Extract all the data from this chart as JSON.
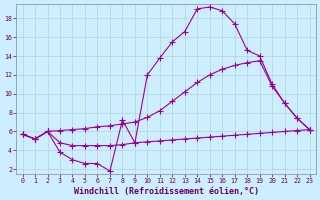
{
  "xlabel": "Windchill (Refroidissement éolien,°C)",
  "background_color": "#cceeff",
  "line_color": "#990099",
  "grid_color": "#aacccc",
  "xlim": [
    -0.5,
    23.5
  ],
  "ylim": [
    1.5,
    19.5
  ],
  "xticks": [
    0,
    1,
    2,
    3,
    4,
    5,
    6,
    7,
    8,
    9,
    10,
    11,
    12,
    13,
    14,
    15,
    16,
    17,
    18,
    19,
    20,
    21,
    22,
    23
  ],
  "yticks": [
    2,
    4,
    6,
    8,
    10,
    12,
    14,
    16,
    18
  ],
  "line1_x": [
    0,
    1,
    2,
    3,
    4,
    5,
    6,
    7,
    8,
    9,
    10,
    11,
    12,
    13,
    14,
    15,
    16,
    17,
    18,
    19,
    20,
    21,
    22,
    23
  ],
  "line1_y": [
    5.7,
    5.2,
    6.0,
    3.8,
    3.0,
    2.6,
    2.6,
    1.8,
    7.2,
    4.8,
    12.0,
    13.8,
    15.5,
    16.6,
    19.0,
    19.2,
    18.8,
    17.4,
    14.6,
    14.0,
    11.0,
    9.0,
    7.4,
    6.2
  ],
  "line2_x": [
    0,
    1,
    2,
    3,
    4,
    5,
    6,
    7,
    8,
    9,
    10,
    11,
    12,
    13,
    14,
    15,
    16,
    17,
    18,
    19,
    20,
    21,
    22,
    23
  ],
  "line2_y": [
    5.7,
    5.2,
    6.0,
    6.1,
    6.2,
    6.3,
    6.5,
    6.6,
    6.8,
    7.0,
    7.5,
    8.2,
    9.2,
    10.2,
    11.2,
    12.0,
    12.6,
    13.0,
    13.3,
    13.5,
    10.8,
    9.0,
    7.4,
    6.2
  ],
  "line3_x": [
    0,
    1,
    2,
    3,
    4,
    5,
    6,
    7,
    8,
    9,
    10,
    11,
    12,
    13,
    14,
    15,
    16,
    17,
    18,
    19,
    20,
    21,
    22,
    23
  ],
  "line3_y": [
    5.7,
    5.2,
    6.0,
    4.8,
    4.5,
    4.5,
    4.5,
    4.5,
    4.6,
    4.8,
    4.9,
    5.0,
    5.1,
    5.2,
    5.3,
    5.4,
    5.5,
    5.6,
    5.7,
    5.8,
    5.9,
    6.0,
    6.1,
    6.2
  ],
  "marker": "P",
  "markersize": 2.5,
  "linewidth": 0.8,
  "tick_fontsize": 4.8,
  "xlabel_fontsize": 6.0
}
